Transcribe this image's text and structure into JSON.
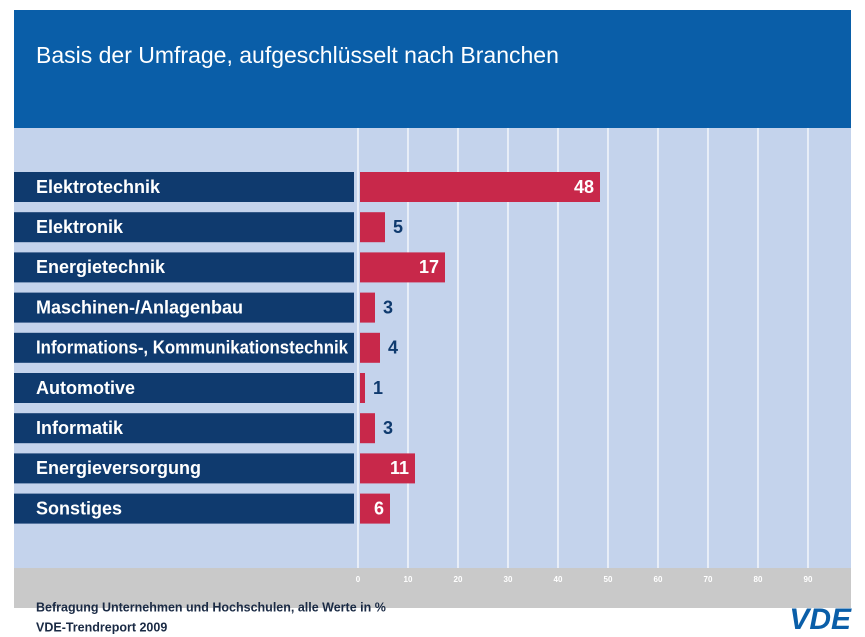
{
  "chart_data": {
    "type": "bar",
    "orientation": "horizontal",
    "title": "Basis der Umfrage, aufgeschlüsselt nach Branchen",
    "categories": [
      "Elektrotechnik",
      "Elektronik",
      "Energietechnik",
      "Maschinen-/Anlagenbau",
      "Informations-, Kommunikationstechnik",
      "Automotive",
      "Informatik",
      "Energieversorgung",
      "Sonstiges"
    ],
    "values": [
      48,
      5,
      17,
      3,
      4,
      1,
      3,
      11,
      6
    ],
    "color": "#c8284a",
    "xlim": [
      0,
      98
    ],
    "xticks": [
      0,
      10,
      20,
      30,
      40,
      50,
      60,
      70,
      80,
      90
    ],
    "grid": true,
    "footnote": "Befragung Unternehmen und Hochschulen, alle Werte in %",
    "source": "VDE-Trendreport 2009",
    "logo": "VDE"
  }
}
